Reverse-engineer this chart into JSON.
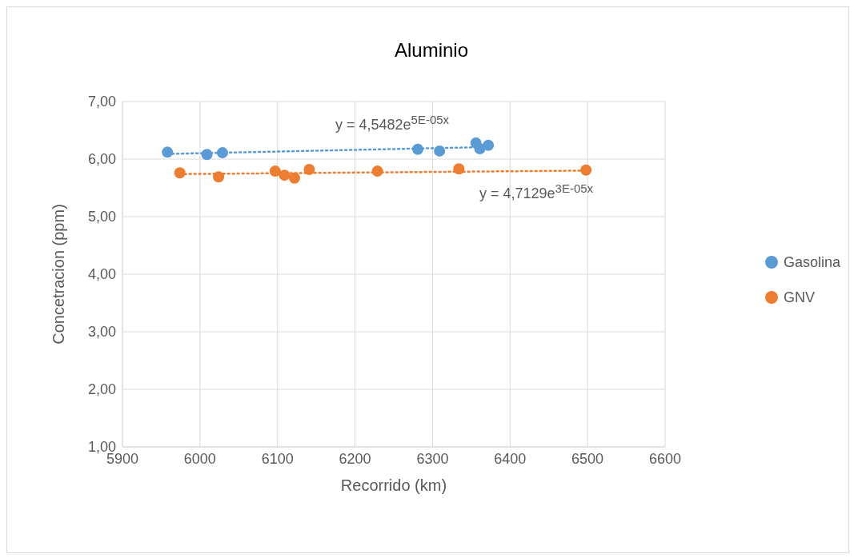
{
  "chart_data": {
    "type": "scatter",
    "title": "Aluminio",
    "xlabel": "Recorrido (km)",
    "ylabel": "Concetracion (ppm)",
    "series": [
      {
        "name": "Gasolina",
        "type": "scatter",
        "color": "#5b9bd5",
        "x": [
          5958,
          6009,
          6029,
          6281,
          6309,
          6356,
          6361,
          6372
        ],
        "values": [
          6.12,
          6.08,
          6.11,
          6.17,
          6.14,
          6.28,
          6.18,
          6.24
        ]
      },
      {
        "name": "GNV",
        "type": "scatter",
        "color": "#ed7d31",
        "x": [
          5974,
          6024,
          6097,
          6109,
          6122,
          6141,
          6229,
          6334,
          6498
        ],
        "values": [
          5.76,
          5.69,
          5.79,
          5.72,
          5.67,
          5.82,
          5.79,
          5.83,
          5.81
        ]
      },
      {
        "type": "line",
        "color": "#5b9bd5",
        "line_style": "dotted",
        "marker": "none",
        "x": [
          5958,
          6372
        ],
        "values": [
          6.09,
          6.21
        ]
      },
      {
        "type": "line",
        "color": "#ed7d31",
        "line_style": "dotted",
        "marker": "none",
        "x": [
          5974,
          6498
        ],
        "values": [
          5.74,
          5.8
        ]
      }
    ],
    "annotations": [
      "y = 4,5482e$^{5E-05x}$",
      "y = 4,7129e$^{3E-05x}$"
    ],
    "xlim": [
      5900,
      6600
    ],
    "xticks": [
      5900,
      6000,
      6100,
      6200,
      6300,
      6400,
      6500,
      6600
    ],
    "ylim": [
      1,
      7
    ],
    "yticks": [
      {
        "value": 1,
        "label": "1,00"
      },
      {
        "value": 2,
        "label": "2,00"
      },
      {
        "value": 3,
        "label": "3,00"
      },
      {
        "value": 4,
        "label": "4,00"
      },
      {
        "value": 5,
        "label": "5,00"
      },
      {
        "value": 6,
        "label": "6,00"
      },
      {
        "value": 7,
        "label": "7,00"
      }
    ],
    "grid": true,
    "legend": "right",
    "marker": "circle"
  }
}
